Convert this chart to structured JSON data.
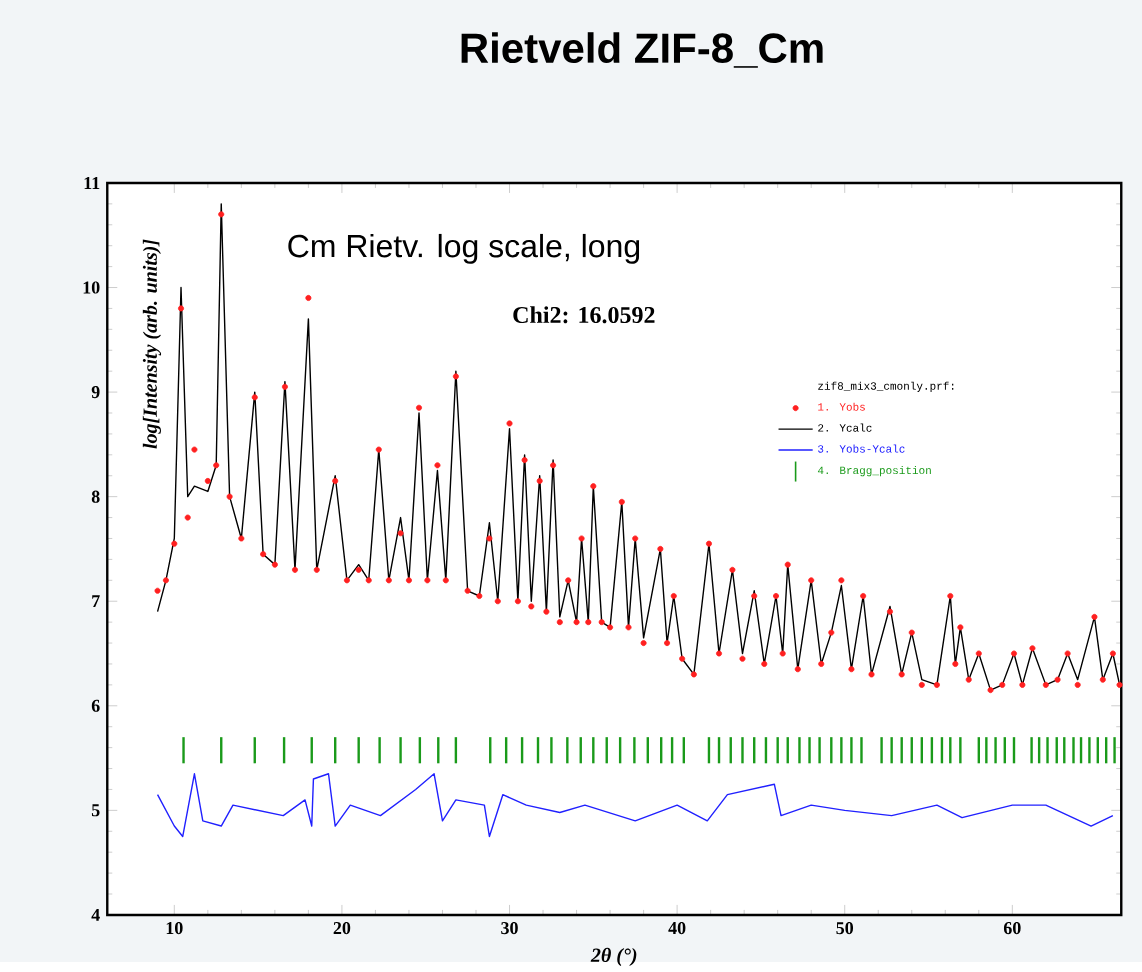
{
  "chart_data": {
    "type": "line",
    "title": "Rietveld ZIF-8_Cm",
    "xlabel": "2θ (°)",
    "ylabel": "log[Intensity (arb. units)]",
    "annotations": [
      "Cm Rietv. log scale, long",
      "Chi2: 16.0592"
    ],
    "legend_title": "zif8_mix3_cmonly.prf:",
    "legend": "right",
    "grid": false,
    "xlim": [
      6,
      66.5
    ],
    "ylim": [
      4,
      11
    ],
    "xticks": [
      10,
      20,
      30,
      40,
      50,
      60
    ],
    "yticks": [
      4,
      5,
      6,
      7,
      8,
      9,
      10,
      11
    ],
    "x": [
      9.0,
      9.5,
      10.0,
      10.4,
      10.8,
      11.2,
      12.0,
      12.5,
      12.8,
      13.3,
      14.0,
      14.8,
      15.3,
      16.0,
      16.6,
      17.2,
      18.0,
      18.5,
      19.6,
      20.3,
      21.0,
      21.6,
      22.2,
      22.8,
      23.5,
      24.0,
      24.6,
      25.1,
      25.7,
      26.2,
      26.8,
      27.5,
      28.2,
      28.8,
      29.3,
      30.0,
      30.5,
      30.9,
      31.3,
      31.8,
      32.2,
      32.6,
      33.0,
      33.5,
      34.0,
      34.3,
      34.7,
      35.0,
      35.5,
      36.0,
      36.7,
      37.1,
      37.5,
      38.0,
      39.0,
      39.4,
      39.8,
      40.3,
      41.0,
      41.9,
      42.5,
      43.3,
      43.9,
      44.6,
      45.2,
      45.9,
      46.3,
      46.6,
      47.2,
      48.0,
      48.6,
      49.2,
      49.8,
      50.4,
      51.1,
      51.6,
      52.7,
      53.4,
      54.0,
      54.6,
      55.5,
      56.3,
      56.6,
      56.9,
      57.4,
      58.0,
      58.7,
      59.4,
      60.1,
      60.6,
      61.2,
      62.0,
      62.7,
      63.3,
      63.9,
      64.9,
      65.4,
      66.0,
      66.4
    ],
    "series": [
      {
        "name": "1. Yobs",
        "type": "scatter",
        "marker": "circle",
        "color": "#ff2020",
        "values": [
          7.1,
          7.2,
          7.55,
          9.8,
          7.8,
          8.45,
          8.15,
          8.3,
          10.7,
          8.0,
          7.6,
          8.95,
          7.45,
          7.35,
          9.05,
          7.3,
          9.9,
          7.3,
          8.15,
          7.2,
          7.3,
          7.2,
          8.45,
          7.2,
          7.65,
          7.2,
          8.85,
          7.2,
          8.3,
          7.2,
          9.15,
          7.1,
          7.05,
          7.6,
          7.0,
          8.7,
          7.0,
          8.35,
          6.95,
          8.15,
          6.9,
          8.3,
          6.8,
          7.2,
          6.8,
          7.6,
          6.8,
          8.1,
          6.8,
          6.75,
          7.95,
          6.75,
          7.6,
          6.6,
          7.5,
          6.6,
          7.05,
          6.45,
          6.3,
          7.55,
          6.5,
          7.3,
          6.45,
          7.05,
          6.4,
          7.05,
          6.5,
          7.35,
          6.35,
          7.2,
          6.4,
          6.7,
          7.2,
          6.35,
          7.05,
          6.3,
          6.9,
          6.3,
          6.7,
          6.2,
          6.2,
          7.05,
          6.4,
          6.75,
          6.25,
          6.5,
          6.15,
          6.2,
          6.5,
          6.2,
          6.55,
          6.2,
          6.25,
          6.5,
          6.2,
          6.85,
          6.25,
          6.5,
          6.2
        ]
      },
      {
        "name": "2. Ycalc",
        "color": "#000000",
        "values": [
          6.9,
          7.2,
          7.6,
          10.0,
          8.0,
          8.1,
          8.05,
          8.3,
          10.8,
          8.0,
          7.6,
          9.0,
          7.45,
          7.35,
          9.1,
          7.3,
          9.7,
          7.3,
          8.2,
          7.2,
          7.35,
          7.2,
          8.45,
          7.2,
          7.8,
          7.2,
          8.8,
          7.2,
          8.25,
          7.2,
          9.2,
          7.1,
          7.05,
          7.75,
          7.0,
          8.65,
          7.0,
          8.4,
          7.0,
          8.2,
          6.9,
          8.35,
          6.85,
          7.2,
          6.8,
          7.6,
          6.8,
          8.1,
          6.8,
          6.75,
          7.95,
          6.75,
          7.6,
          6.65,
          7.5,
          6.6,
          7.05,
          6.45,
          6.3,
          7.55,
          6.5,
          7.3,
          6.5,
          7.1,
          6.4,
          7.05,
          6.5,
          7.35,
          6.35,
          7.2,
          6.4,
          6.7,
          7.15,
          6.35,
          7.05,
          6.3,
          6.95,
          6.3,
          6.7,
          6.25,
          6.2,
          7.05,
          6.4,
          6.75,
          6.25,
          6.5,
          6.15,
          6.2,
          6.5,
          6.2,
          6.55,
          6.2,
          6.25,
          6.5,
          6.25,
          6.85,
          6.25,
          6.5,
          6.2
        ]
      },
      {
        "name": "3. Yobs-Ycalc",
        "color": "#2020ff",
        "x": [
          9.0,
          10.0,
          10.5,
          11.2,
          11.7,
          12.8,
          13.5,
          16.5,
          17.8,
          18.2,
          18.3,
          19.2,
          19.6,
          20.5,
          22.3,
          24.4,
          25.5,
          26.0,
          26.8,
          28.5,
          28.8,
          29.6,
          31.0,
          33.0,
          34.5,
          37.5,
          40.0,
          41.8,
          43.0,
          45.8,
          46.2,
          48.0,
          50.0,
          52.8,
          55.5,
          57.0,
          60.0,
          62.0,
          64.7,
          66.0
        ],
        "values": [
          5.15,
          4.85,
          4.75,
          5.35,
          4.9,
          4.85,
          5.05,
          4.95,
          5.1,
          4.85,
          5.3,
          5.35,
          4.85,
          5.05,
          4.95,
          5.2,
          5.35,
          4.9,
          5.1,
          5.05,
          4.75,
          5.15,
          5.05,
          4.98,
          5.05,
          4.9,
          5.05,
          4.9,
          5.15,
          5.25,
          4.95,
          5.05,
          5.0,
          4.95,
          5.05,
          4.93,
          5.05,
          5.05,
          4.85,
          4.95
        ]
      },
      {
        "name": "4. Bragg_position",
        "type": "bar",
        "color": "#1a9a1a",
        "base": [
          5.45,
          5.45,
          5.45,
          5.45,
          5.45,
          5.45,
          5.45,
          5.45,
          5.45,
          5.45,
          5.45,
          5.45,
          5.45,
          5.45,
          5.45,
          5.45,
          5.45,
          5.45,
          5.45,
          5.45,
          5.45,
          5.45,
          5.45,
          5.45,
          5.45,
          5.45,
          5.45,
          5.45,
          5.45,
          5.45,
          5.45,
          5.45,
          5.45,
          5.45,
          5.45,
          5.45,
          5.45,
          5.45,
          5.45,
          5.45,
          5.45,
          5.45,
          5.45,
          5.45,
          5.45,
          5.45,
          5.45,
          5.45,
          5.45,
          5.45,
          5.45,
          5.45,
          5.45,
          5.45,
          5.45,
          5.45,
          5.45,
          5.45,
          5.45,
          5.45,
          5.45,
          5.45,
          5.45,
          5.45,
          5.45,
          5.45,
          5.45
        ],
        "x": [
          10.55,
          12.8,
          14.8,
          16.55,
          18.2,
          19.6,
          21.0,
          22.25,
          23.5,
          24.65,
          25.75,
          26.8,
          28.85,
          29.8,
          30.75,
          31.7,
          32.5,
          33.45,
          34.25,
          35.0,
          35.8,
          36.6,
          37.45,
          38.25,
          39.05,
          39.7,
          40.4,
          41.9,
          42.5,
          43.2,
          43.9,
          44.6,
          45.3,
          46.0,
          46.6,
          47.3,
          47.9,
          48.5,
          49.2,
          49.8,
          50.4,
          51.0,
          52.2,
          52.8,
          53.4,
          54.0,
          54.6,
          55.2,
          55.8,
          56.3,
          56.9,
          58.0,
          58.45,
          59.0,
          59.55,
          60.1,
          61.15,
          61.6,
          62.1,
          62.65,
          63.1,
          63.65,
          64.1,
          64.6,
          65.1,
          65.6,
          66.1
        ],
        "values": [
          0.25,
          0.25,
          0.25,
          0.25,
          0.25,
          0.25,
          0.25,
          0.25,
          0.25,
          0.25,
          0.25,
          0.25,
          0.25,
          0.25,
          0.25,
          0.25,
          0.25,
          0.25,
          0.25,
          0.25,
          0.25,
          0.25,
          0.25,
          0.25,
          0.25,
          0.25,
          0.25,
          0.25,
          0.25,
          0.25,
          0.25,
          0.25,
          0.25,
          0.25,
          0.25,
          0.25,
          0.25,
          0.25,
          0.25,
          0.25,
          0.25,
          0.25,
          0.25,
          0.25,
          0.25,
          0.25,
          0.25,
          0.25,
          0.25,
          0.25,
          0.25,
          0.25,
          0.25,
          0.25,
          0.25,
          0.25,
          0.25,
          0.25,
          0.25,
          0.25,
          0.25,
          0.25,
          0.25,
          0.25,
          0.25,
          0.25,
          0.25
        ]
      }
    ]
  }
}
